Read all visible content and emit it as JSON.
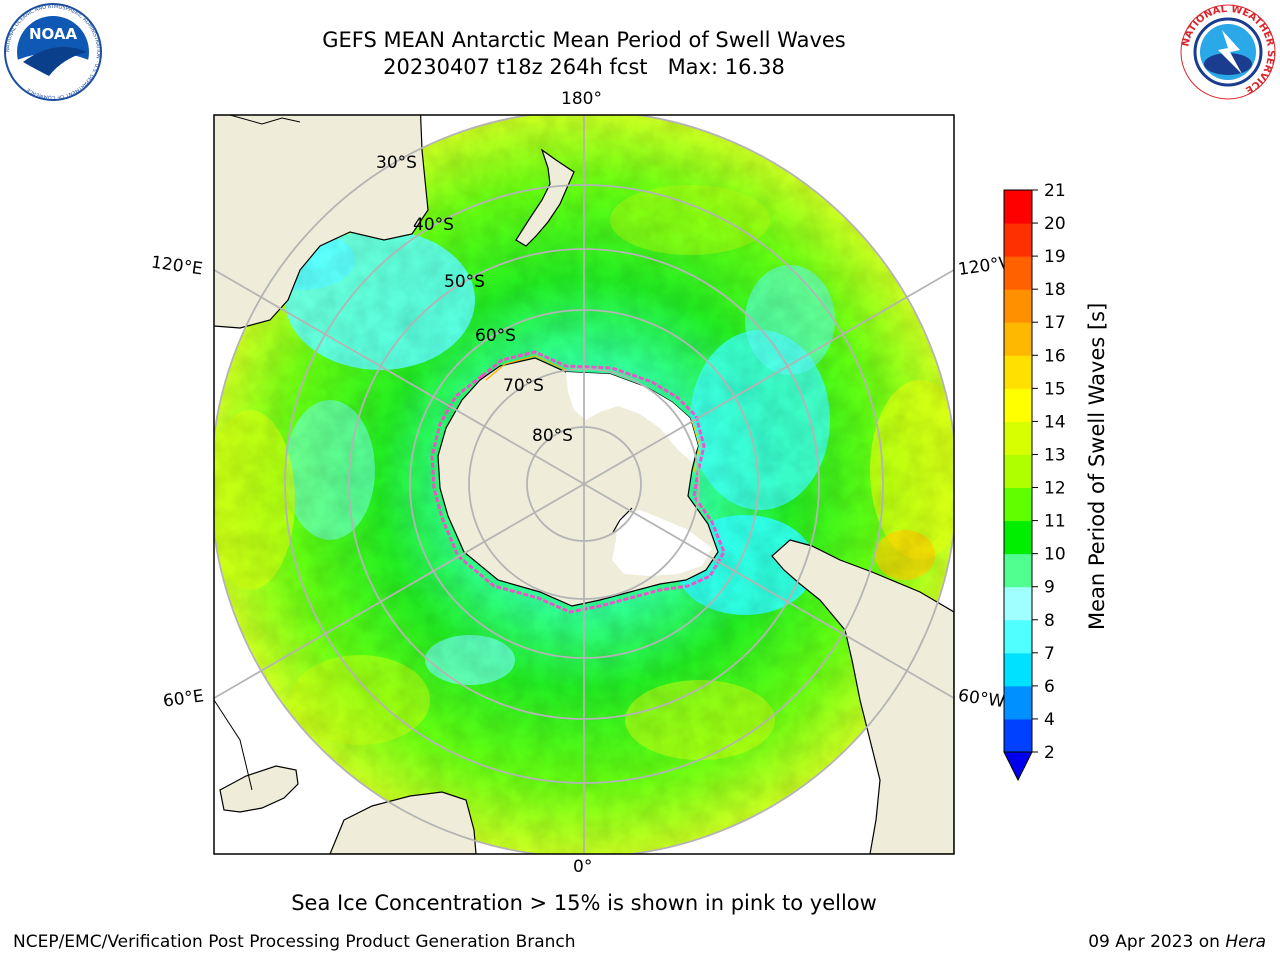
{
  "header": {
    "title_line1": "GEFS MEAN Antarctic Mean Period of Swell Waves",
    "title_line2": "20230407 t18z 264h fcst   Max: 16.38"
  },
  "logos": {
    "noaa_text": "NOAA",
    "noaa_ring_text": "NATIONAL OCEANIC AND ATMOSPHERIC ADMINISTRATION · U.S. DEPARTMENT OF COMMERCE",
    "nws_ring_text": "NATIONAL WEATHER SERVICE"
  },
  "map": {
    "projection": "south-polar-stereographic",
    "longitude_labels": {
      "top": "180°",
      "bottom": "0°",
      "upper_left": "120°E",
      "upper_right": "120°W",
      "lower_left": "60°E",
      "lower_right": "60°W"
    },
    "latitude_labels": [
      "30°S",
      "40°S",
      "50°S",
      "60°S",
      "70°S",
      "80°S"
    ],
    "colors": {
      "land": "#efedda",
      "ice_shelf": "#ffffff",
      "sea_ice_edge": "#ff44cc",
      "grid": "#b4b4b4"
    }
  },
  "colorbar": {
    "label": "Mean Period of Swell Waves [s]",
    "ticks": [
      "2",
      "4",
      "6",
      "7",
      "8",
      "9",
      "10",
      "11",
      "12",
      "13",
      "14",
      "15",
      "16",
      "17",
      "18",
      "19",
      "20",
      "21"
    ],
    "colors": [
      "#0040ff",
      "#0090ff",
      "#00e0ff",
      "#50ffff",
      "#a0ffff",
      "#50ff90",
      "#00ee00",
      "#60ff00",
      "#b0ff00",
      "#d8ff00",
      "#ffff00",
      "#ffe000",
      "#ffb800",
      "#ff9000",
      "#ff6000",
      "#ff3000",
      "#ff0000"
    ],
    "under_color": "#0000ee"
  },
  "caption": "Sea Ice Concentration > 15% is shown in pink to yellow",
  "footer": {
    "left": "NCEP/EMC/Verification Post Processing Product Generation Branch",
    "right_date": "09 Apr 2023 on ",
    "right_host": "Hera"
  }
}
